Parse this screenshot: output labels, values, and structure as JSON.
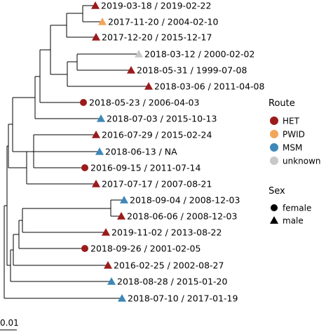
{
  "tree": {
    "tips": [
      {
        "label": "2019-03-18 / 2019-02-22",
        "route": "HET",
        "sex": "male"
      },
      {
        "label": "2017-11-20 / 2004-02-10",
        "route": "PWID",
        "sex": "male"
      },
      {
        "label": "2017-12-20 / 2015-12-17",
        "route": "HET",
        "sex": "male"
      },
      {
        "label": "2018-03-12 / 2000-02-02",
        "route": "unknown",
        "sex": "male"
      },
      {
        "label": "2018-05-31 / 1999-07-08",
        "route": "HET",
        "sex": "male"
      },
      {
        "label": "2018-03-06 / 2011-04-08",
        "route": "HET",
        "sex": "male"
      },
      {
        "label": "2018-05-23 / 2006-04-03",
        "route": "HET",
        "sex": "female"
      },
      {
        "label": "2018-07-03 / 2015-10-13",
        "route": "MSM",
        "sex": "male"
      },
      {
        "label": "2016-07-29 / 2015-02-24",
        "route": "HET",
        "sex": "male"
      },
      {
        "label": "2018-06-13 / NA",
        "route": "MSM",
        "sex": "male"
      },
      {
        "label": "2016-09-15 / 2011-07-14",
        "route": "HET",
        "sex": "female"
      },
      {
        "label": "2017-07-17 / 2007-08-21",
        "route": "HET",
        "sex": "male"
      },
      {
        "label": "2018-09-04 / 2008-12-03",
        "route": "MSM",
        "sex": "male"
      },
      {
        "label": "2018-06-06 / 2008-12-03",
        "route": "HET",
        "sex": "male"
      },
      {
        "label": "2019-11-02 / 2013-08-22",
        "route": "HET",
        "sex": "male"
      },
      {
        "label": "2018-09-26 / 2001-02-05",
        "route": "HET",
        "sex": "female"
      },
      {
        "label": "2016-02-25 / 2002-08-27",
        "route": "HET",
        "sex": "male"
      },
      {
        "label": "2018-08-28 / 2015-01-20",
        "route": "MSM",
        "sex": "male"
      },
      {
        "label": "2018-07-10 / 2017-01-19",
        "route": "MSM",
        "sex": "male"
      }
    ]
  },
  "legend": {
    "route": {
      "title": "Route",
      "items": [
        {
          "label": "HET",
          "color": "#9b1b1b"
        },
        {
          "label": "PWID",
          "color": "#f2a65a"
        },
        {
          "label": "MSM",
          "color": "#3e88b8"
        },
        {
          "label": "unknown",
          "color": "#c8c8c8"
        }
      ]
    },
    "sex": {
      "title": "Sex",
      "items": [
        {
          "label": "female",
          "shape": "circle"
        },
        {
          "label": "male",
          "shape": "triangle"
        }
      ]
    }
  },
  "scale_bar": {
    "label": "0.01"
  }
}
